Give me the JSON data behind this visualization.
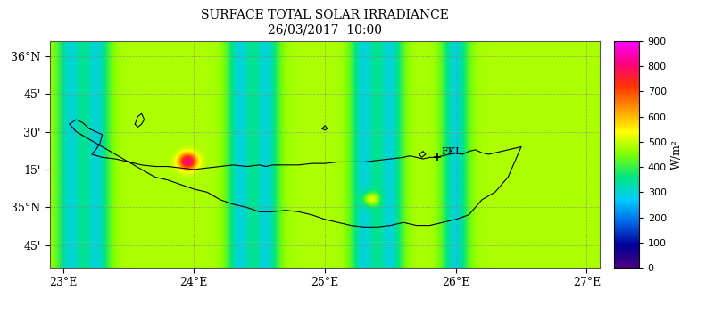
{
  "title_line1": "SURFACE TOTAL SOLAR IRRADIANCE",
  "title_line2": "26/03/2017  10:00",
  "xlabel_ticks": [
    "23°E",
    "24°E",
    "25°E",
    "26°E",
    "27°E"
  ],
  "xlabel_vals": [
    23,
    24,
    25,
    26,
    27
  ],
  "ylabel_ticks": [
    "36°N",
    "45'",
    "30'",
    "15'",
    "35°N",
    "45'"
  ],
  "ylabel_vals": [
    36.0,
    35.75,
    35.5,
    35.25,
    35.0,
    34.75
  ],
  "lon_min": 22.9,
  "lon_max": 27.1,
  "lat_min": 34.6,
  "lat_max": 36.1,
  "vmin": 0,
  "vmax": 900,
  "colorbar_label": "W/m²",
  "colorbar_ticks": [
    0,
    100,
    200,
    300,
    400,
    500,
    600,
    700,
    800,
    900
  ],
  "fkl_lon": 25.86,
  "fkl_lat": 35.33,
  "background_color": "#ffffff",
  "main_irradiance": 480,
  "cloud_shadow_value": 350,
  "bright_spot_value": 750,
  "fig_width": 8.0,
  "fig_height": 3.53,
  "dpi": 100
}
